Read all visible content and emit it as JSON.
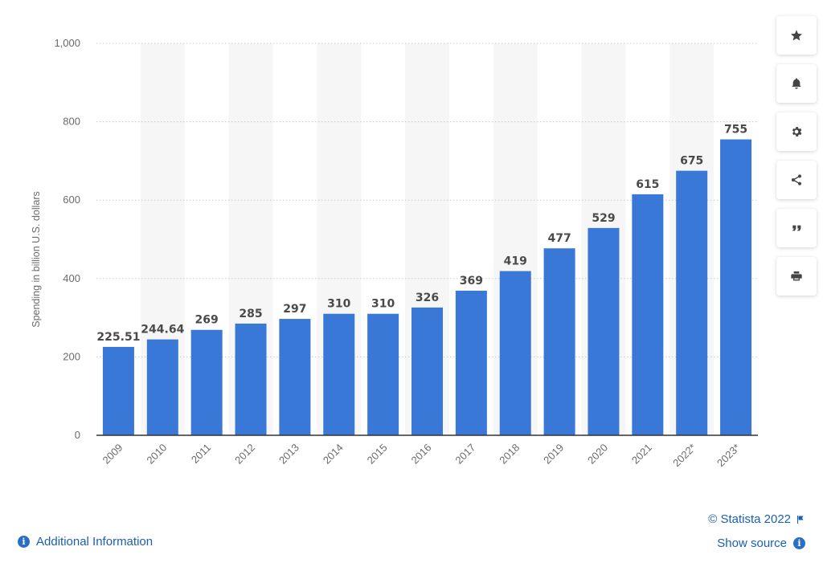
{
  "chart_data": {
    "type": "bar",
    "categories": [
      "2009",
      "2010",
      "2011",
      "2012",
      "2013",
      "2014",
      "2015",
      "2016",
      "2017",
      "2018",
      "2019",
      "2020",
      "2021",
      "2022*",
      "2023*"
    ],
    "values": [
      225.51,
      244.64,
      269,
      285,
      297,
      310,
      310,
      326,
      369,
      419,
      477,
      529,
      615,
      675,
      755
    ],
    "value_labels": [
      "225.51",
      "244.64",
      "269",
      "285",
      "297",
      "310",
      "310",
      "326",
      "369",
      "419",
      "477",
      "529",
      "615",
      "675",
      "755"
    ],
    "ylabel": "Spending in billion U.S. dollars",
    "xlabel": "",
    "ylim": [
      0,
      1000
    ],
    "yticks": [
      0,
      200,
      400,
      600,
      800,
      1000
    ],
    "ytick_labels": [
      "0",
      "200",
      "400",
      "600",
      "800",
      "1,000"
    ],
    "grid": true,
    "bar_color": "#3a78d8"
  },
  "toolbar": {
    "icons": [
      "star-icon",
      "bell-icon",
      "gear-icon",
      "share-icon",
      "quote-icon",
      "print-icon"
    ]
  },
  "footer": {
    "additional_info": "Additional Information",
    "credit": "© Statista 2022",
    "show_source": "Show source",
    "info_glyph": "i"
  }
}
